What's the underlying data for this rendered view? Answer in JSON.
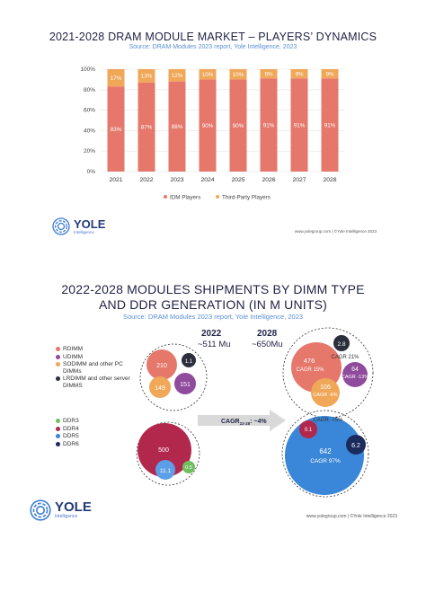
{
  "chart_data": [
    {
      "type": "bar",
      "stacked": true,
      "normalized": true,
      "title": "2021-2028 DRAM MODULE MARKET – PLAYERS’ DYNAMICS",
      "subtitle": "Source: DRAM Modules 2023 report, Yole Intelligence, 2023",
      "categories": [
        "2021",
        "2022",
        "2023",
        "2024",
        "2025",
        "2026",
        "2027",
        "2028"
      ],
      "series": [
        {
          "name": "IDM Players",
          "values": [
            83,
            87,
            88,
            90,
            90,
            91,
            91,
            91
          ],
          "labels": [
            "83%",
            "87%",
            "88%",
            "90%",
            "90%",
            "91%",
            "91%",
            "91%"
          ],
          "color": "#e5776b"
        },
        {
          "name": "Third-Party Players",
          "values": [
            17,
            13,
            12,
            10,
            10,
            9,
            9,
            9
          ],
          "labels": [
            "17%",
            "13%",
            "12%",
            "10%",
            "10%",
            "9%",
            "9%",
            "9%"
          ],
          "color": "#f0a758"
        }
      ],
      "yticks": [
        "0%",
        "20%",
        "40%",
        "60%",
        "80%",
        "100%"
      ],
      "ylim": [
        0,
        100
      ],
      "grid": true,
      "legend": "bottom"
    },
    {
      "type": "bubble",
      "title_line1": "2022-2028 MODULES SHIPMENTS BY DIMM TYPE",
      "title_line2": "AND DDR GENERATION (IN M UNITS)",
      "subtitle": "Source: DRAM Modules 2023 report, Yole Intelligence, 2023",
      "groups": [
        {
          "year": "2022",
          "total": "~511 Mu"
        },
        {
          "year": "2028",
          "total": "~650Mu"
        }
      ],
      "dimm_legend": [
        {
          "label": "RDIMM",
          "color": "#e5776b"
        },
        {
          "label": "UDIMM",
          "color": "#8f4b9c"
        },
        {
          "label": "SODIMM and other PC DIMMs",
          "color": "#f0a758"
        },
        {
          "label": "LRDIMM and other server DIMMS",
          "color": "#2b2f3c"
        }
      ],
      "ddr_legend": [
        {
          "label": "DDR3",
          "color": "#6fbf5f"
        },
        {
          "label": "DDR4",
          "color": "#b2284d"
        },
        {
          "label": "DDR5",
          "color": "#3a86d9"
        },
        {
          "label": "DDR6",
          "color": "#1b2b5c"
        }
      ],
      "dimm_2022": [
        {
          "type": "RDIMM",
          "value": "210"
        },
        {
          "type": "LRDIMM and other server DIMMS",
          "value": "1.1"
        },
        {
          "type": "SODIMM and other PC DIMMs",
          "value": "149"
        },
        {
          "type": "UDIMM",
          "value": "151"
        }
      ],
      "dimm_2028": [
        {
          "type": "RDIMM",
          "value": "476",
          "cagr": "CAGR 15%"
        },
        {
          "type": "LRDIMM and other server DIMMS",
          "value": "2.8",
          "cagr": "CAGR 21%"
        },
        {
          "type": "UDIMM",
          "value": "64",
          "cagr": "CAGR -13%"
        },
        {
          "type": "SODIMM and other PC DIMMs",
          "value": "106",
          "cagr": "CAGR -6%"
        }
      ],
      "ddr_2022": [
        {
          "type": "DDR4",
          "value": "500"
        },
        {
          "type": "DDR5",
          "value": "11.1"
        },
        {
          "type": "DDR3",
          "value": "0.5"
        }
      ],
      "ddr_2028": [
        {
          "type": "DDR5",
          "value": "642",
          "cagr": "CAGR 97%"
        },
        {
          "type": "DDR4",
          "value": "0.1",
          "cagr": "CAGR -75%"
        },
        {
          "type": "DDR6",
          "value": "6.2"
        }
      ],
      "total_cagr": {
        "label": "CAGR",
        "sub": "22-28",
        "value": ": ~4%"
      }
    }
  ],
  "footers": [
    {
      "url": "www.yolegroup.com | ©Yole Intelligence 2023"
    },
    {
      "url": "www.yolegroup.com | ©Yole Intelligence 2023"
    }
  ],
  "logo": {
    "word": "YOLE",
    "sub": "Intelligence"
  }
}
